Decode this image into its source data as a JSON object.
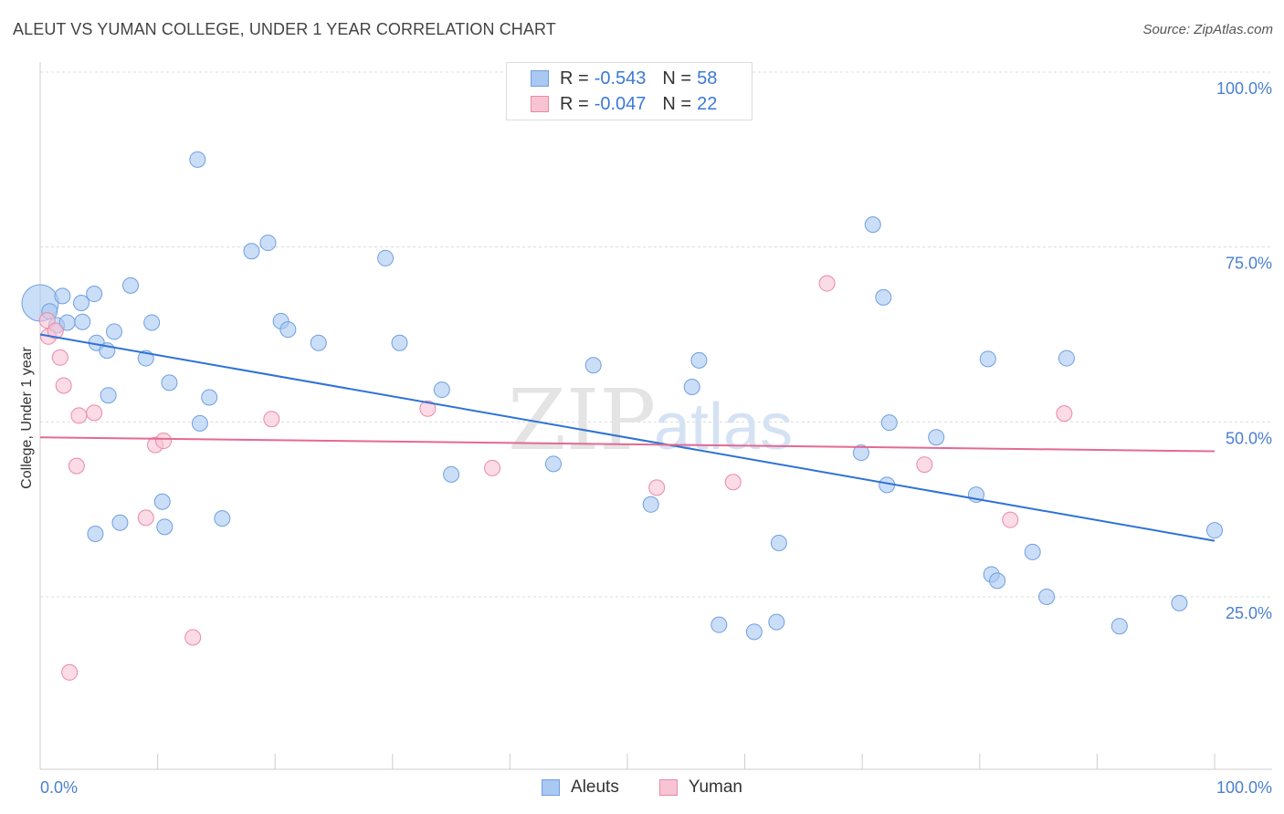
{
  "title": "ALEUT VS YUMAN COLLEGE, UNDER 1 YEAR CORRELATION CHART",
  "source": "Source: ZipAtlas.com",
  "watermark": {
    "zip": "ZIP",
    "atlas": "atlas"
  },
  "legend": {
    "rows": [
      {
        "r_label": "R =",
        "r_value": "-0.543",
        "n_label": "N =",
        "n_value": "58",
        "color": "#a9c8f2",
        "border": "#6f9fe0"
      },
      {
        "r_label": "R =",
        "r_value": "-0.047",
        "n_label": "N =",
        "n_value": "22",
        "color": "#f8c3d3",
        "border": "#e98aa7"
      }
    ]
  },
  "bottom_legend": [
    {
      "label": "Aleuts",
      "color": "#a9c8f2",
      "border": "#6f9fe0"
    },
    {
      "label": "Yuman",
      "color": "#f8c3d3",
      "border": "#e98aa7"
    }
  ],
  "chart_data": {
    "type": "scatter",
    "title": "ALEUT VS YUMAN COLLEGE, UNDER 1 YEAR CORRELATION CHART",
    "xlabel": "",
    "ylabel": "College, Under 1 year",
    "xlim": [
      0,
      100
    ],
    "ylim": [
      0,
      100
    ],
    "x_tick_labels": [
      "0.0%",
      "100.0%"
    ],
    "y_ticks": [
      {
        "value": 25,
        "label": "25.0%"
      },
      {
        "value": 50,
        "label": "50.0%"
      },
      {
        "value": 75,
        "label": "75.0%"
      },
      {
        "value": 100,
        "label": "100.0%"
      }
    ],
    "series": [
      {
        "name": "Aleuts",
        "color": "#a9c8f2",
        "stroke": "#6f9fe0",
        "line_color": "#2f72d6",
        "trend": {
          "x": [
            0,
            100
          ],
          "y": [
            62.5,
            33.0
          ]
        },
        "points": [
          {
            "x": 0.0,
            "y": 67.0,
            "big": true
          },
          {
            "x": 0.8,
            "y": 65.8
          },
          {
            "x": 1.4,
            "y": 63.8
          },
          {
            "x": 1.9,
            "y": 68.0
          },
          {
            "x": 2.3,
            "y": 64.2
          },
          {
            "x": 3.5,
            "y": 67.0
          },
          {
            "x": 3.6,
            "y": 64.3
          },
          {
            "x": 4.6,
            "y": 68.3
          },
          {
            "x": 4.7,
            "y": 34.0
          },
          {
            "x": 4.8,
            "y": 61.3
          },
          {
            "x": 5.7,
            "y": 60.2
          },
          {
            "x": 5.8,
            "y": 53.8
          },
          {
            "x": 6.3,
            "y": 62.9
          },
          {
            "x": 6.8,
            "y": 35.6
          },
          {
            "x": 7.7,
            "y": 69.5
          },
          {
            "x": 9.0,
            "y": 59.1
          },
          {
            "x": 9.5,
            "y": 64.2
          },
          {
            "x": 10.4,
            "y": 38.6
          },
          {
            "x": 10.6,
            "y": 35.0
          },
          {
            "x": 11.0,
            "y": 55.6
          },
          {
            "x": 13.4,
            "y": 87.5
          },
          {
            "x": 13.6,
            "y": 49.8
          },
          {
            "x": 14.4,
            "y": 53.5
          },
          {
            "x": 15.5,
            "y": 36.2
          },
          {
            "x": 18.0,
            "y": 74.4
          },
          {
            "x": 19.4,
            "y": 75.6
          },
          {
            "x": 20.5,
            "y": 64.4
          },
          {
            "x": 21.1,
            "y": 63.2
          },
          {
            "x": 23.7,
            "y": 61.3
          },
          {
            "x": 29.4,
            "y": 73.4
          },
          {
            "x": 30.6,
            "y": 61.3
          },
          {
            "x": 34.2,
            "y": 54.6
          },
          {
            "x": 35.0,
            "y": 42.5
          },
          {
            "x": 43.7,
            "y": 44.0
          },
          {
            "x": 47.1,
            "y": 58.1
          },
          {
            "x": 52.0,
            "y": 38.2
          },
          {
            "x": 55.5,
            "y": 55.0
          },
          {
            "x": 56.1,
            "y": 58.8
          },
          {
            "x": 57.8,
            "y": 21.0
          },
          {
            "x": 60.8,
            "y": 20.0
          },
          {
            "x": 62.7,
            "y": 21.4
          },
          {
            "x": 62.9,
            "y": 32.7
          },
          {
            "x": 69.9,
            "y": 45.6
          },
          {
            "x": 70.9,
            "y": 78.2
          },
          {
            "x": 71.8,
            "y": 67.8
          },
          {
            "x": 72.1,
            "y": 41.0
          },
          {
            "x": 72.3,
            "y": 49.9
          },
          {
            "x": 76.3,
            "y": 47.8
          },
          {
            "x": 79.7,
            "y": 39.6
          },
          {
            "x": 80.7,
            "y": 59.0
          },
          {
            "x": 81.0,
            "y": 28.2
          },
          {
            "x": 81.5,
            "y": 27.3
          },
          {
            "x": 84.5,
            "y": 31.4
          },
          {
            "x": 87.4,
            "y": 59.1
          },
          {
            "x": 85.7,
            "y": 25.0
          },
          {
            "x": 91.9,
            "y": 20.8
          },
          {
            "x": 97.0,
            "y": 24.1
          },
          {
            "x": 100.0,
            "y": 34.5
          }
        ]
      },
      {
        "name": "Yuman",
        "color": "#f8c3d3",
        "stroke": "#e98aa7",
        "line_color": "#e36a93",
        "trend": {
          "x": [
            0,
            100
          ],
          "y": [
            47.8,
            45.8
          ]
        },
        "points": [
          {
            "x": 0.6,
            "y": 64.5
          },
          {
            "x": 0.7,
            "y": 62.2
          },
          {
            "x": 1.3,
            "y": 63.0
          },
          {
            "x": 1.7,
            "y": 59.2
          },
          {
            "x": 2.0,
            "y": 55.2
          },
          {
            "x": 2.5,
            "y": 14.2
          },
          {
            "x": 3.1,
            "y": 43.7
          },
          {
            "x": 3.3,
            "y": 50.9
          },
          {
            "x": 4.6,
            "y": 51.3
          },
          {
            "x": 9.0,
            "y": 36.3
          },
          {
            "x": 9.8,
            "y": 46.7
          },
          {
            "x": 10.5,
            "y": 47.3
          },
          {
            "x": 13.0,
            "y": 19.2
          },
          {
            "x": 19.7,
            "y": 50.4
          },
          {
            "x": 33.0,
            "y": 51.9
          },
          {
            "x": 38.5,
            "y": 43.4
          },
          {
            "x": 52.5,
            "y": 40.6
          },
          {
            "x": 59.0,
            "y": 41.4
          },
          {
            "x": 67.0,
            "y": 69.8
          },
          {
            "x": 75.3,
            "y": 43.9
          },
          {
            "x": 82.6,
            "y": 36.0
          },
          {
            "x": 87.2,
            "y": 51.2
          }
        ]
      }
    ]
  }
}
